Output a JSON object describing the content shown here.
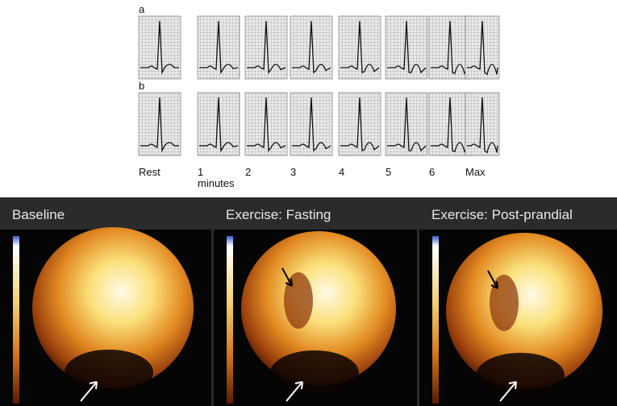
{
  "ecg": {
    "rows": [
      "a",
      "b"
    ],
    "time_labels": [
      "Rest",
      "1",
      "2",
      "3",
      "4",
      "5",
      "6",
      "Max"
    ],
    "unit": "minutes"
  },
  "scans": [
    {
      "title": "Baseline"
    },
    {
      "title": "Exercise: Fasting"
    },
    {
      "title": "Exercise: Post-prandial"
    }
  ]
}
